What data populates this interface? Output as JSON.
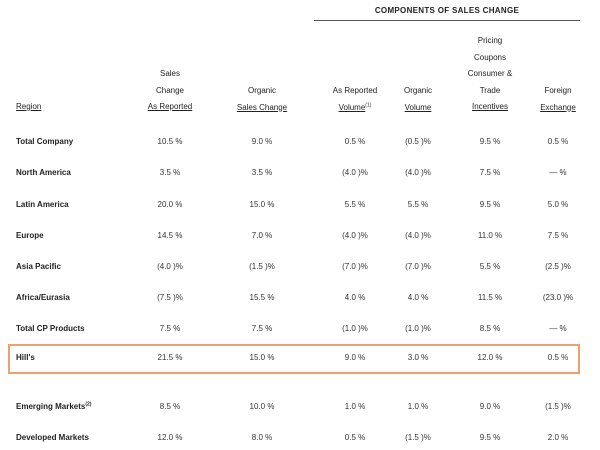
{
  "components_title": "COMPONENTS OF SALES CHANGE",
  "headers": {
    "region": "Region",
    "sales_change": {
      "line1": "Sales",
      "line2": "Change",
      "line3": "As Reported"
    },
    "organic_sales_change": {
      "line1": "Organic",
      "line2": "Sales Change"
    },
    "as_reported_volume": {
      "line1": "As Reported",
      "line2": "Volume",
      "footnote": "(1)"
    },
    "organic_volume": {
      "line1": "Organic",
      "line2": "Volume"
    },
    "pricing": {
      "line1": "Pricing",
      "line2": "Coupons",
      "line3": "Consumer &",
      "line4": "Trade",
      "line5": "Incentives"
    },
    "foreign_exchange": {
      "line1": "Foreign",
      "line2": "Exchange"
    }
  },
  "rows": [
    {
      "region": "Total Company",
      "sales_change": "10.5 %",
      "organic_sales_change": "9.0 %",
      "as_reported_volume": "0.5 %",
      "organic_volume": "(0.5 )%",
      "pricing": "9.5 %",
      "foreign_exchange": "0.5 %"
    },
    {
      "region": "North America",
      "sales_change": "3.5 %",
      "organic_sales_change": "3.5 %",
      "as_reported_volume": "(4.0 )%",
      "organic_volume": "(4.0 )%",
      "pricing": "7.5 %",
      "foreign_exchange": "— %"
    },
    {
      "region": "Latin America",
      "sales_change": "20.0 %",
      "organic_sales_change": "15.0 %",
      "as_reported_volume": "5.5 %",
      "organic_volume": "5.5 %",
      "pricing": "9.5 %",
      "foreign_exchange": "5.0 %"
    },
    {
      "region": "Europe",
      "sales_change": "14.5 %",
      "organic_sales_change": "7.0 %",
      "as_reported_volume": "(4.0 )%",
      "organic_volume": "(4.0 )%",
      "pricing": "11.0 %",
      "foreign_exchange": "7.5 %"
    },
    {
      "region": "Asia Pacific",
      "sales_change": "(4.0 )%",
      "organic_sales_change": "(1.5 )%",
      "as_reported_volume": "(7.0 )%",
      "organic_volume": "(7.0 )%",
      "pricing": "5.5 %",
      "foreign_exchange": "(2.5 )%"
    },
    {
      "region": "Africa/Eurasia",
      "sales_change": "(7.5 )%",
      "organic_sales_change": "15.5 %",
      "as_reported_volume": "4.0 %",
      "organic_volume": "4.0 %",
      "pricing": "11.5 %",
      "foreign_exchange": "(23.0 )%"
    },
    {
      "region": "Total CP Products",
      "sales_change": "7.5 %",
      "organic_sales_change": "7.5 %",
      "as_reported_volume": "(1.0 )%",
      "organic_volume": "(1.0 )%",
      "pricing": "8.5 %",
      "foreign_exchange": "— %"
    },
    {
      "region": "Hill's",
      "sales_change": "21.5 %",
      "organic_sales_change": "15.0 %",
      "as_reported_volume": "9.0 %",
      "organic_volume": "3.0 %",
      "pricing": "12.0 %",
      "foreign_exchange": "0.5 %"
    },
    {
      "region": "Emerging Markets",
      "region_footnote": "(2)",
      "sales_change": "8.5 %",
      "organic_sales_change": "10.0 %",
      "as_reported_volume": "1.0 %",
      "organic_volume": "1.0 %",
      "pricing": "9.0 %",
      "foreign_exchange": "(1.5 )%"
    },
    {
      "region": "Developed Markets",
      "sales_change": "12.0 %",
      "organic_sales_change": "8.0 %",
      "as_reported_volume": "0.5 %",
      "organic_volume": "(1.5 )%",
      "pricing": "9.5 %",
      "foreign_exchange": "2.0 %"
    }
  ],
  "highlight_color": "#f0a070"
}
